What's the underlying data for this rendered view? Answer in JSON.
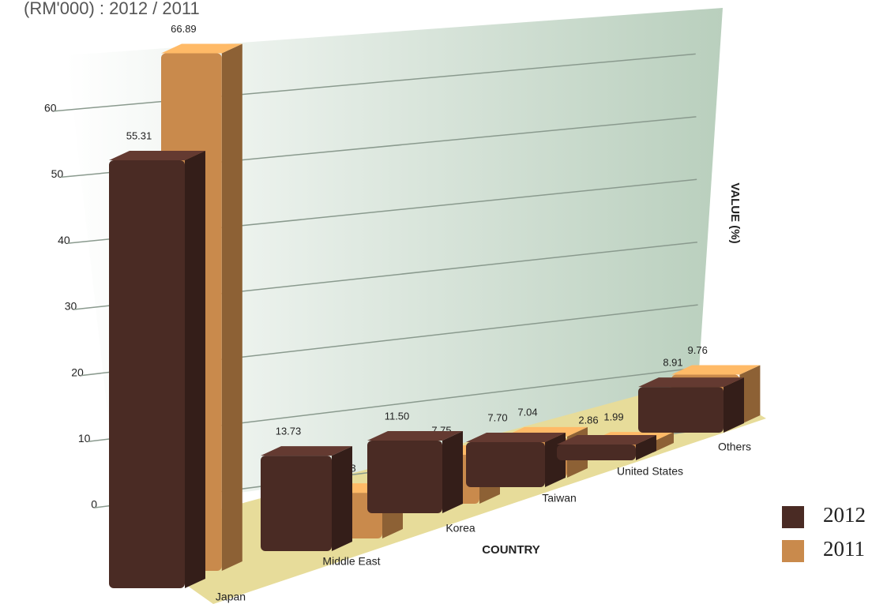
{
  "chart_data": {
    "type": "bar3d",
    "title": "(RM'000) : 2012 / 2011",
    "x_label": "COUNTRY",
    "y_label": "VALUE (%)",
    "categories": [
      "Japan",
      "Middle East",
      "Korea",
      "Taiwan",
      "United States",
      "Others"
    ],
    "series": [
      {
        "name": "2012",
        "color": "#4a2b24",
        "values": [
          55.31,
          13.73,
          11.5,
          7.7,
          2.86,
          8.91
        ],
        "value_labels": [
          "55.31",
          "13.73",
          "11.50",
          "7.70",
          "2.86",
          "8.91"
        ]
      },
      {
        "name": "2011",
        "color": "#c98a4c",
        "values": [
          66.89,
          6.58,
          7.75,
          7.04,
          1.99,
          9.76
        ],
        "value_labels": [
          "66.89",
          "6.58",
          "7.75",
          "7.04",
          "1.99",
          "9.76"
        ]
      }
    ],
    "ylim": [
      0,
      70
    ],
    "yticks": [
      0,
      10,
      20,
      30,
      40,
      50,
      60
    ],
    "grid": true
  }
}
